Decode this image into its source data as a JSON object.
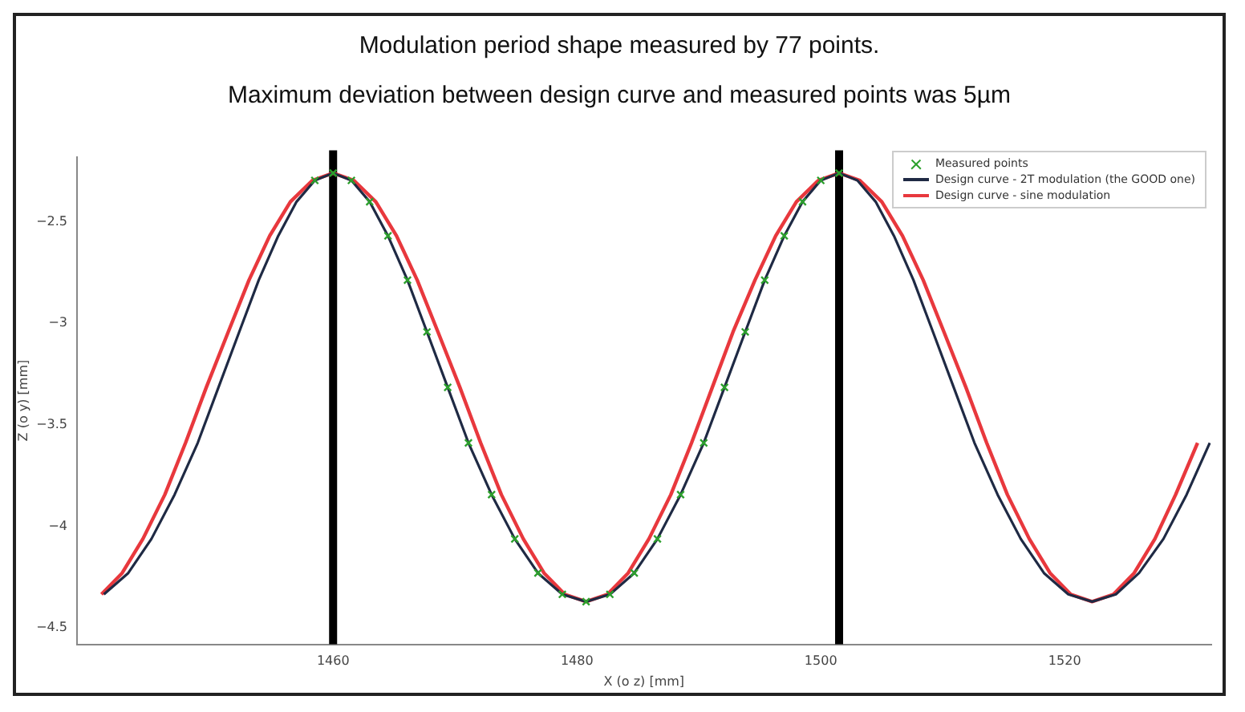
{
  "chart_data": {
    "type": "line",
    "title": "Modulation period shape measured by 77 points.",
    "subtitle": "Maximum deviation between design curve and measured points was 5µm",
    "xlabel": "X (o z) [mm]",
    "ylabel": "Z (o y) [mm]",
    "xlim": [
      1439,
      1532
    ],
    "xticks": [
      1460,
      1480,
      1500,
      1520
    ],
    "ylim": [
      -4.58,
      -2.18
    ],
    "yticks": [
      -2.5,
      -3.0,
      -3.5,
      -4.0,
      -4.5
    ],
    "grid": false,
    "legend": "top right",
    "marker": "none",
    "line_style": "solid",
    "ref_lines": [
      {
        "axis": "x",
        "value": 1460,
        "color": "#000000"
      },
      {
        "axis": "x",
        "value": 1501.5,
        "color": "#000000"
      }
    ],
    "series": [
      {
        "name": "Measured points",
        "type": "scatter",
        "marker": "cross",
        "color": "#2ca02c",
        "x": [
          1458.5,
          1460,
          1461.5,
          1463.0,
          1464.5,
          1466.1,
          1467.7,
          1469.4,
          1471.1,
          1473.0,
          1474.9,
          1476.8,
          1478.8,
          1480.75,
          1482.7,
          1484.7,
          1486.6,
          1488.5,
          1490.4,
          1492.1,
          1493.8,
          1495.4,
          1497.0,
          1498.5,
          1500.0,
          1501.5
        ],
        "values": [
          -2.296,
          -2.26,
          -2.296,
          -2.401,
          -2.569,
          -2.787,
          -3.042,
          -3.315,
          -3.588,
          -3.843,
          -4.061,
          -4.229,
          -4.334,
          -4.37,
          -4.334,
          -4.229,
          -4.061,
          -3.843,
          -3.588,
          -3.315,
          -3.042,
          -2.787,
          -2.569,
          -2.401,
          -2.296,
          -2.26
        ]
      },
      {
        "name": "Design curve - 2T modulation (the GOOD one)",
        "type": "line",
        "color": "#1f2a44",
        "x": [
          1441.2,
          1443.2,
          1445.1,
          1447.0,
          1448.9,
          1450.6,
          1452.3,
          1453.9,
          1455.5,
          1457.0,
          1458.5,
          1460,
          1461.5,
          1463.0,
          1464.5,
          1466.1,
          1467.7,
          1469.4,
          1471.1,
          1473.0,
          1474.9,
          1476.8,
          1478.8,
          1480.75,
          1482.7,
          1484.7,
          1486.6,
          1488.5,
          1490.4,
          1492.1,
          1493.8,
          1495.4,
          1497.0,
          1498.5,
          1500.0,
          1501.5,
          1503.0,
          1504.5,
          1506.0,
          1507.6,
          1509.2,
          1510.9,
          1512.6,
          1514.5,
          1516.4,
          1518.3,
          1520.3,
          1522.25,
          1524.2,
          1526.1,
          1528.1,
          1530.0,
          1531.9
        ],
        "values": [
          -4.334,
          -4.229,
          -4.061,
          -3.843,
          -3.588,
          -3.315,
          -3.042,
          -2.787,
          -2.569,
          -2.401,
          -2.296,
          -2.26,
          -2.296,
          -2.401,
          -2.569,
          -2.787,
          -3.042,
          -3.315,
          -3.588,
          -3.843,
          -4.061,
          -4.229,
          -4.334,
          -4.37,
          -4.334,
          -4.229,
          -4.061,
          -3.843,
          -3.588,
          -3.315,
          -3.042,
          -2.787,
          -2.569,
          -2.401,
          -2.296,
          -2.26,
          -2.296,
          -2.401,
          -2.569,
          -2.787,
          -3.042,
          -3.315,
          -3.588,
          -3.843,
          -4.061,
          -4.229,
          -4.334,
          -4.37,
          -4.334,
          -4.229,
          -4.061,
          -3.843,
          -3.588
        ]
      },
      {
        "name": "Design curve - sine modulation",
        "type": "line",
        "color": "#e8383d",
        "x": [
          1441.0,
          1442.7,
          1444.4,
          1446.2,
          1447.9,
          1449.6,
          1451.4,
          1453.1,
          1454.8,
          1456.5,
          1458.3,
          1460,
          1461.7,
          1463.5,
          1465.2,
          1466.9,
          1468.6,
          1470.4,
          1472.1,
          1473.8,
          1475.6,
          1477.3,
          1479.0,
          1480.75,
          1482.5,
          1484.2,
          1485.9,
          1487.7,
          1489.4,
          1491.1,
          1492.8,
          1494.6,
          1496.3,
          1498.0,
          1499.8,
          1501.5,
          1503.2,
          1505.0,
          1506.7,
          1508.4,
          1510.1,
          1511.9,
          1513.6,
          1515.3,
          1517.1,
          1518.8,
          1520.5,
          1522.25,
          1524.0,
          1525.7,
          1527.4,
          1529.1,
          1530.9
        ],
        "values": [
          -4.334,
          -4.229,
          -4.061,
          -3.843,
          -3.588,
          -3.315,
          -3.042,
          -2.787,
          -2.569,
          -2.401,
          -2.296,
          -2.26,
          -2.296,
          -2.401,
          -2.569,
          -2.787,
          -3.042,
          -3.315,
          -3.588,
          -3.843,
          -4.061,
          -4.229,
          -4.334,
          -4.37,
          -4.334,
          -4.229,
          -4.061,
          -3.843,
          -3.588,
          -3.315,
          -3.042,
          -2.787,
          -2.569,
          -2.401,
          -2.296,
          -2.26,
          -2.296,
          -2.401,
          -2.569,
          -2.787,
          -3.042,
          -3.315,
          -3.588,
          -3.843,
          -4.061,
          -4.229,
          -4.334,
          -4.37,
          -4.334,
          -4.229,
          -4.061,
          -3.843,
          -3.588
        ]
      }
    ]
  }
}
